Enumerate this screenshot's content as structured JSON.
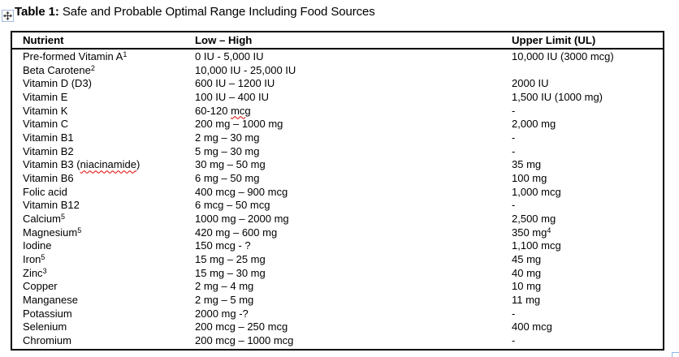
{
  "caption": {
    "label": "Table 1:",
    "text": " Safe and Probable Optimal Range Including Food Sources"
  },
  "icons": {
    "move_handle": "four-direction-move-arrows",
    "resize_handle": "table-resize-square"
  },
  "colors": {
    "text": "#000000",
    "table_border": "#000000",
    "spellcheck_squiggle": "#e00000",
    "handle_border": "#8eb4e3"
  },
  "table": {
    "columns": [
      "Nutrient",
      "Low – High",
      "Upper Limit (UL)"
    ],
    "rows": [
      [
        [
          {
            "t": "Pre-formed Vitamin A"
          },
          {
            "t": "1",
            "sup": true
          }
        ],
        [
          {
            "t": "0 IU - 5,000 IU"
          }
        ],
        [
          {
            "t": "10,000 IU (3000 mcg)"
          }
        ]
      ],
      [
        [
          {
            "t": "Beta Carotene"
          },
          {
            "t": "2",
            "sup": true
          }
        ],
        [
          {
            "t": "10,000 IU - 25,000 IU"
          }
        ],
        [
          {
            "t": ""
          }
        ]
      ],
      [
        [
          {
            "t": "Vitamin D (D3)"
          }
        ],
        [
          {
            "t": "600 IU – 1200 IU"
          }
        ],
        [
          {
            "t": "2000 IU"
          }
        ]
      ],
      [
        [
          {
            "t": "Vitamin E"
          }
        ],
        [
          {
            "t": "100 IU – 400 IU"
          }
        ],
        [
          {
            "t": "1,500 IU (1000 mg)"
          }
        ]
      ],
      [
        [
          {
            "t": "Vitamin K"
          }
        ],
        [
          {
            "t": "60-120 "
          },
          {
            "t": "mcg",
            "mis": true
          }
        ],
        [
          {
            "t": "-"
          }
        ]
      ],
      [
        [
          {
            "t": "Vitamin C"
          }
        ],
        [
          {
            "t": "200 mg – 1000 mg"
          }
        ],
        [
          {
            "t": "2,000 mg"
          }
        ]
      ],
      [
        [
          {
            "t": "Vitamin B1"
          }
        ],
        [
          {
            "t": "2 mg – 30 mg"
          }
        ],
        [
          {
            "t": "-"
          }
        ]
      ],
      [
        [
          {
            "t": "Vitamin B2"
          }
        ],
        [
          {
            "t": "5 mg – 30 mg"
          }
        ],
        [
          {
            "t": "-"
          }
        ]
      ],
      [
        [
          {
            "t": "Vitamin B3 ("
          },
          {
            "t": "niacinamide",
            "mis": true
          },
          {
            "t": ")"
          }
        ],
        [
          {
            "t": "30 mg – 50 mg"
          }
        ],
        [
          {
            "t": "35 mg"
          }
        ]
      ],
      [
        [
          {
            "t": "Vitamin B6"
          }
        ],
        [
          {
            "t": "6 mg – 50 mg"
          }
        ],
        [
          {
            "t": "100 mg"
          }
        ]
      ],
      [
        [
          {
            "t": "Folic acid"
          }
        ],
        [
          {
            "t": "400 mcg – 900 mcg"
          }
        ],
        [
          {
            "t": "1,000 mcg"
          }
        ]
      ],
      [
        [
          {
            "t": "Vitamin B12"
          }
        ],
        [
          {
            "t": "6 mcg – 50 mcg"
          }
        ],
        [
          {
            "t": "-"
          }
        ]
      ],
      [
        [
          {
            "t": "Calcium"
          },
          {
            "t": "5",
            "sup": true
          }
        ],
        [
          {
            "t": "1000 mg – 2000 mg"
          }
        ],
        [
          {
            "t": "2,500 mg"
          }
        ]
      ],
      [
        [
          {
            "t": "Magnesium"
          },
          {
            "t": "5",
            "sup": true
          }
        ],
        [
          {
            "t": "420 mg – 600 mg"
          }
        ],
        [
          {
            "t": "350 mg"
          },
          {
            "t": "4",
            "sup": true
          }
        ]
      ],
      [
        [
          {
            "t": "Iodine"
          }
        ],
        [
          {
            "t": "150 mcg - ?"
          }
        ],
        [
          {
            "t": "1,100 mcg"
          }
        ]
      ],
      [
        [
          {
            "t": "Iron"
          },
          {
            "t": "5",
            "sup": true
          }
        ],
        [
          {
            "t": "15 mg – 25 mg"
          }
        ],
        [
          {
            "t": "45 mg"
          }
        ]
      ],
      [
        [
          {
            "t": "Zinc"
          },
          {
            "t": "3",
            "sup": true
          }
        ],
        [
          {
            "t": "15 mg – 30 mg"
          }
        ],
        [
          {
            "t": "40 mg"
          }
        ]
      ],
      [
        [
          {
            "t": "Copper"
          }
        ],
        [
          {
            "t": "2 mg – 4 mg"
          }
        ],
        [
          {
            "t": "10 mg"
          }
        ]
      ],
      [
        [
          {
            "t": "Manganese"
          }
        ],
        [
          {
            "t": "2 mg – 5 mg"
          }
        ],
        [
          {
            "t": "11 mg"
          }
        ]
      ],
      [
        [
          {
            "t": "Potassium"
          }
        ],
        [
          {
            "t": "2000 mg -?"
          }
        ],
        [
          {
            "t": "-"
          }
        ]
      ],
      [
        [
          {
            "t": "Selenium"
          }
        ],
        [
          {
            "t": "200 mcg – 250 mcg"
          }
        ],
        [
          {
            "t": "400 mcg"
          }
        ]
      ],
      [
        [
          {
            "t": "Chromium"
          }
        ],
        [
          {
            "t": "200 mcg – 1000 mcg"
          }
        ],
        [
          {
            "t": "-"
          }
        ]
      ]
    ]
  }
}
